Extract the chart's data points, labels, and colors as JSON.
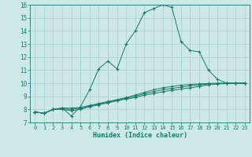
{
  "xlabel": "Humidex (Indice chaleur)",
  "background_color": "#cce8e8",
  "grid_color": "#aacfcf",
  "line_color": "#1a7a6a",
  "xlim": [
    -0.5,
    23.5
  ],
  "ylim": [
    7,
    16
  ],
  "xticks": [
    0,
    1,
    2,
    3,
    4,
    5,
    6,
    7,
    8,
    9,
    10,
    11,
    12,
    13,
    14,
    15,
    16,
    17,
    18,
    19,
    20,
    21,
    22,
    23
  ],
  "yticks": [
    7,
    8,
    9,
    10,
    11,
    12,
    13,
    14,
    15,
    16
  ],
  "lines": [
    {
      "x": [
        0,
        1,
        2,
        3,
        4,
        5,
        6,
        7,
        8,
        9,
        10,
        11,
        12,
        13,
        14,
        15,
        16,
        17,
        18,
        19,
        20,
        21,
        22,
        23
      ],
      "y": [
        7.8,
        7.7,
        8.0,
        8.1,
        7.5,
        8.2,
        9.5,
        11.1,
        11.7,
        11.1,
        13.0,
        14.0,
        15.4,
        15.7,
        16.0,
        15.8,
        13.2,
        12.5,
        12.4,
        11.0,
        10.3,
        10.0,
        10.0,
        10.0
      ]
    },
    {
      "x": [
        0,
        1,
        2,
        3,
        4,
        5,
        6,
        7,
        8,
        9,
        10,
        11,
        12,
        13,
        14,
        15,
        16,
        17,
        18,
        19,
        20,
        21,
        22,
        23
      ],
      "y": [
        7.8,
        7.7,
        8.0,
        8.1,
        8.1,
        8.15,
        8.3,
        8.45,
        8.6,
        8.75,
        8.9,
        9.1,
        9.3,
        9.5,
        9.65,
        9.75,
        9.85,
        9.9,
        9.95,
        9.98,
        10.0,
        10.0,
        10.0,
        10.0
      ]
    },
    {
      "x": [
        0,
        1,
        2,
        3,
        4,
        5,
        6,
        7,
        8,
        9,
        10,
        11,
        12,
        13,
        14,
        15,
        16,
        17,
        18,
        19,
        20,
        21,
        22,
        23
      ],
      "y": [
        7.8,
        7.7,
        8.0,
        8.05,
        8.0,
        8.1,
        8.25,
        8.4,
        8.55,
        8.7,
        8.85,
        9.0,
        9.2,
        9.35,
        9.5,
        9.6,
        9.7,
        9.8,
        9.88,
        9.94,
        9.97,
        10.0,
        10.0,
        10.0
      ]
    },
    {
      "x": [
        0,
        1,
        2,
        3,
        4,
        5,
        6,
        7,
        8,
        9,
        10,
        11,
        12,
        13,
        14,
        15,
        16,
        17,
        18,
        19,
        20,
        21,
        22,
        23
      ],
      "y": [
        7.8,
        7.7,
        8.0,
        8.0,
        7.9,
        8.0,
        8.2,
        8.35,
        8.5,
        8.65,
        8.8,
        8.9,
        9.1,
        9.2,
        9.35,
        9.45,
        9.55,
        9.65,
        9.75,
        9.88,
        9.94,
        9.97,
        10.0,
        10.0
      ]
    }
  ]
}
